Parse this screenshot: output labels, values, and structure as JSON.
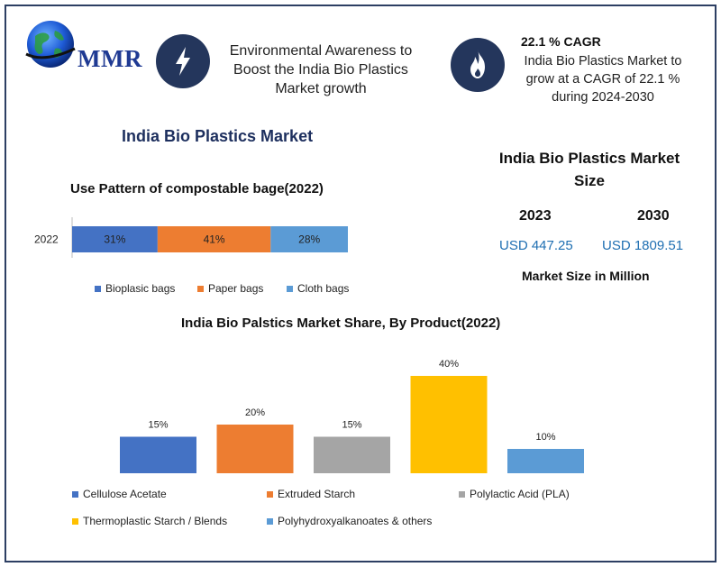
{
  "logo": {
    "text": "MMR"
  },
  "header": {
    "left_text_lines": [
      "Environmental Awareness to",
      "Boost the India Bio Plastics",
      "Market growth"
    ],
    "cagr_title": "22.1 % CAGR",
    "cagr_text_lines": [
      "India Bio Plastics Market to",
      "grow at a CAGR of 22.1 %",
      "during  2024-2030"
    ],
    "icons": [
      "lightning-icon",
      "flame-icon"
    ]
  },
  "main_title": "India Bio Plastics Market",
  "market_size": {
    "title_lines": [
      "India Bio Plastics Market",
      "Size"
    ],
    "years": [
      {
        "year": "2023",
        "value": "USD 447.25"
      },
      {
        "year": "2030",
        "value": "USD 1809.51"
      }
    ],
    "unit": "Market Size in Million"
  },
  "chart_data": [
    {
      "type": "bar",
      "orientation": "horizontal-stacked",
      "title": "Use Pattern of compostable bage(2022)",
      "categories": [
        "2022"
      ],
      "series": [
        {
          "name": "Bioplasic bags",
          "values": [
            31
          ],
          "label": "31%",
          "color": "#4472c4"
        },
        {
          "name": "Paper bags",
          "values": [
            41
          ],
          "label": "41%",
          "color": "#ed7d31"
        },
        {
          "name": "Cloth bags",
          "values": [
            28
          ],
          "label": "28%",
          "color": "#5b9bd5"
        }
      ],
      "legend": "bottom"
    },
    {
      "type": "bar",
      "title": "India Bio Palstics Market Share, By Product(2022)",
      "categories": [
        "Cellulose Acetate",
        "Extruded Starch",
        "Polylactic Acid (PLA)",
        "Thermoplastic Starch / Blends",
        "Polyhydroxyalkanoates & others"
      ],
      "values": [
        15,
        20,
        15,
        40,
        10
      ],
      "labels": [
        "15%",
        "20%",
        "15%",
        "40%",
        "10%"
      ],
      "colors": [
        "#4472c4",
        "#ed7d31",
        "#a5a5a5",
        "#ffc000",
        "#5b9bd5"
      ],
      "ylim": [
        0,
        40
      ],
      "grid": false,
      "legend": "bottom"
    }
  ]
}
